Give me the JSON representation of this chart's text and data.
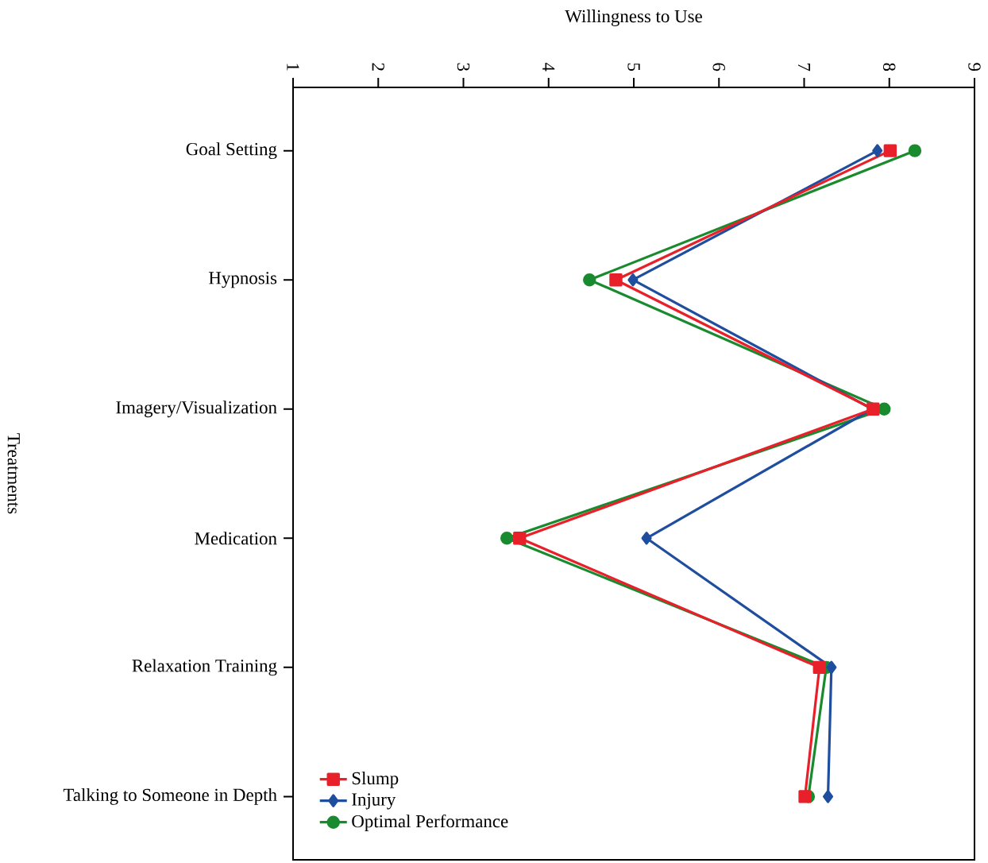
{
  "chart_data": {
    "type": "line",
    "orientation": "horizontal",
    "xlabel": "Willingness to Use",
    "ylabel": "Treatments",
    "categories": [
      "Goal Setting",
      "Hypnosis",
      "Imagery/Visualization",
      "Medication",
      "Relaxation Training",
      "Talking to Someone in Depth"
    ],
    "xlim": [
      1,
      9
    ],
    "xticks": [
      1,
      2,
      3,
      4,
      5,
      6,
      7,
      8,
      9
    ],
    "legend": "bottom left",
    "line_style": "solid",
    "series": [
      {
        "name": "Optimal Performance",
        "color": "#1a8a2e",
        "marker": "circle",
        "values": [
          8.3,
          4.48,
          7.94,
          3.51,
          7.26,
          7.05
        ]
      },
      {
        "name": "Injury",
        "color": "#1f4e9e",
        "marker": "diamond",
        "values": [
          7.86,
          4.99,
          7.8,
          5.15,
          7.32,
          7.28
        ]
      },
      {
        "name": "Slump",
        "color": "#e8202a",
        "marker": "square",
        "values": [
          8.01,
          4.79,
          7.81,
          3.66,
          7.18,
          7.01
        ]
      }
    ]
  }
}
